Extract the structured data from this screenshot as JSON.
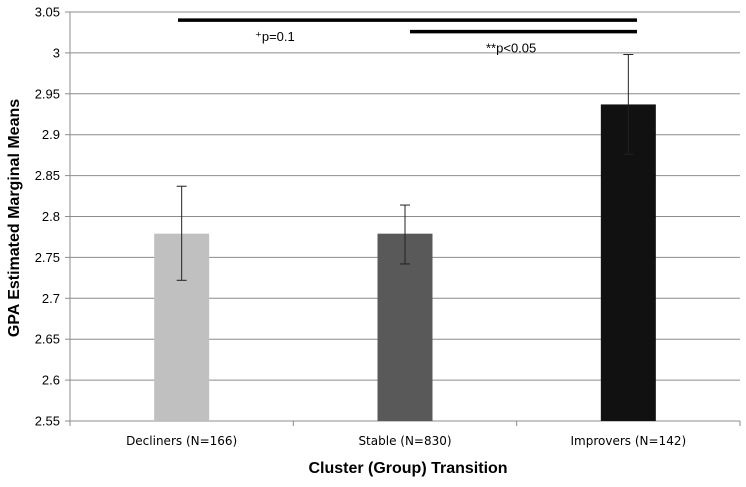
{
  "chart_data": {
    "type": "bar",
    "title": "",
    "xlabel": "Cluster (Group) Transition",
    "ylabel": "GPA Estimated Marginal Means",
    "ylim": [
      2.55,
      3.05
    ],
    "yticks": [
      "2.55",
      "2.6",
      "2.65",
      "2.7",
      "2.75",
      "2.8",
      "2.85",
      "2.9",
      "2.95",
      "3",
      "3.05"
    ],
    "grid": true,
    "categories": [
      "Decliners (N=166)",
      "Stable (N=830)",
      "Improvers (N=142)"
    ],
    "values": [
      2.779,
      2.779,
      2.937
    ],
    "error_low": [
      2.722,
      2.742,
      2.876
    ],
    "error_high": [
      2.837,
      2.814,
      2.998
    ],
    "bar_colors": [
      "#c0c0c0",
      "#595959",
      "#111111"
    ],
    "annotations": [
      {
        "text": "⁺p=0.1",
        "from_category": 0,
        "to_category": 2,
        "y": 3.04
      },
      {
        "text": "**p<0.05",
        "from_category": 1,
        "to_category": 2,
        "y": 3.026
      }
    ]
  }
}
